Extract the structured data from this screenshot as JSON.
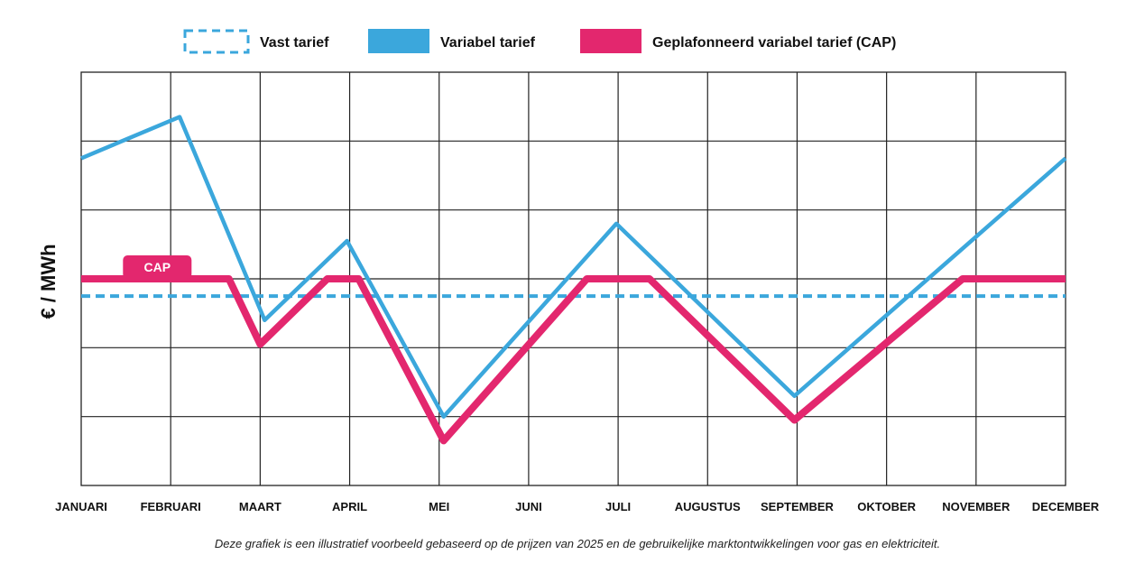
{
  "chart_data": {
    "type": "line",
    "categories": [
      "JANUARI",
      "FEBRUARI",
      "MAART",
      "APRIL",
      "MEI",
      "JUNI",
      "JULI",
      "AUGUSTUS",
      "SEPTEMBER",
      "OKTOBER",
      "NOVEMBER",
      "DECEMBER"
    ],
    "ylabel": "€ / MWh",
    "ylim": [
      0,
      6
    ],
    "grid": true,
    "legend_placement": "top-center",
    "series": [
      {
        "name": "Vast tarief",
        "style": "dashed",
        "color": "#3ba7dc",
        "points": [
          [
            0,
            2.75
          ],
          [
            11,
            2.75
          ]
        ]
      },
      {
        "name": "Variabel tarief",
        "style": "solid",
        "color": "#3ba7dc",
        "points": [
          [
            0,
            4.75
          ],
          [
            1.1,
            5.35
          ],
          [
            2.05,
            2.4
          ],
          [
            2.97,
            3.55
          ],
          [
            4.05,
            1.0
          ],
          [
            5.98,
            3.8
          ],
          [
            7.97,
            1.3
          ],
          [
            11,
            4.75
          ]
        ]
      },
      {
        "name": "Geplafonneerd variabel tarief (CAP)",
        "style": "solid",
        "color": "#e3276e",
        "points": [
          [
            0,
            3.0
          ],
          [
            1.65,
            3.0
          ],
          [
            2.0,
            2.05
          ],
          [
            2.75,
            3.0
          ],
          [
            3.1,
            3.0
          ],
          [
            4.05,
            0.65
          ],
          [
            5.65,
            3.0
          ],
          [
            6.35,
            3.0
          ],
          [
            7.97,
            0.95
          ],
          [
            9.85,
            3.0
          ],
          [
            11,
            3.0
          ]
        ]
      }
    ],
    "annotation": {
      "text": "CAP",
      "series": "Geplafonneerd variabel tarief (CAP)",
      "x": 0.85,
      "y": 3.0
    },
    "caption": "Deze grafiek is een illustratief voorbeeld gebaseerd op de prijzen van 2025 en de gebruikelijke marktontwikkelingen voor gas en elektriciteit."
  },
  "legend": [
    {
      "label": "Vast tarief",
      "swatch": "dashed-box",
      "color": "#3ba7dc"
    },
    {
      "label": "Variabel tarief",
      "swatch": "solid-box",
      "color": "#3ba7dc"
    },
    {
      "label": "Geplafonneerd variabel tarief (CAP)",
      "swatch": "solid-box",
      "color": "#e3276e"
    }
  ]
}
